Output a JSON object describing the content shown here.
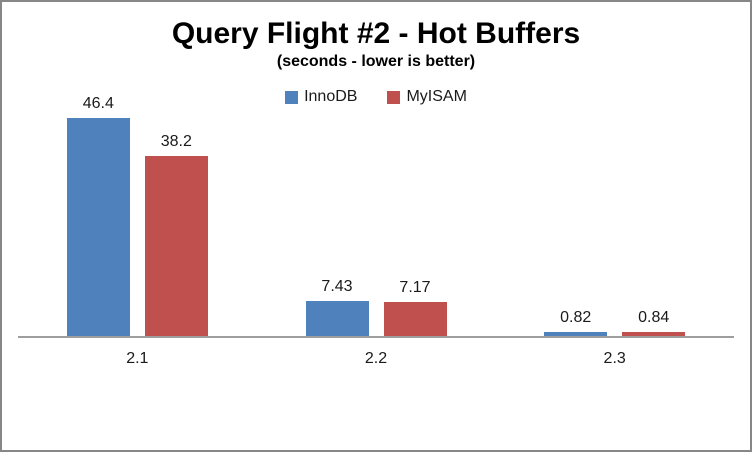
{
  "chart_data": {
    "type": "bar",
    "title": "Query Flight #2 - Hot Buffers",
    "subtitle": "(seconds - lower is better)",
    "categories": [
      "2.1",
      "2.2",
      "2.3"
    ],
    "series": [
      {
        "name": "InnoDB",
        "color": "#4F81BD",
        "values": [
          46.4,
          7.43,
          0.82
        ]
      },
      {
        "name": "MyISAM",
        "color": "#C0504D",
        "values": [
          38.2,
          7.17,
          0.84
        ]
      }
    ],
    "value_labels": {
      "InnoDB": [
        "46.4",
        "7.43",
        "0.82"
      ],
      "MyISAM": [
        "38.2",
        "7.17",
        "0.84"
      ]
    },
    "ylabel": "",
    "xlabel": "",
    "ylim": [
      0,
      48.9
    ],
    "grid": false,
    "y_axis_visible": false,
    "legend_position": "top",
    "axis_line_color": "#9e9e9e",
    "frame_border_color": "#878787"
  }
}
